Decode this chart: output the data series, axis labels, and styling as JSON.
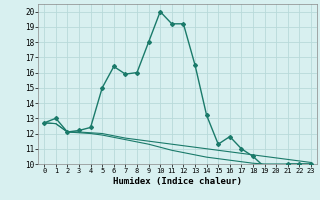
{
  "xlabel": "Humidex (Indice chaleur)",
  "ylabel": "",
  "bg_color": "#d8f0f0",
  "grid_color": "#b8dada",
  "line_color": "#1a7a6a",
  "xlim": [
    -0.5,
    23.5
  ],
  "ylim": [
    10,
    20.5
  ],
  "xticks": [
    0,
    1,
    2,
    3,
    4,
    5,
    6,
    7,
    8,
    9,
    10,
    11,
    12,
    13,
    14,
    15,
    16,
    17,
    18,
    19,
    20,
    21,
    22,
    23
  ],
  "yticks": [
    10,
    11,
    12,
    13,
    14,
    15,
    16,
    17,
    18,
    19,
    20
  ],
  "series1_x": [
    0,
    1,
    2,
    3,
    4,
    5,
    6,
    7,
    8,
    9,
    10,
    11,
    12,
    13,
    14,
    15,
    16,
    17,
    18,
    19,
    20,
    21,
    22,
    23
  ],
  "series1_y": [
    12.7,
    13.0,
    12.1,
    12.2,
    12.4,
    15.0,
    16.4,
    15.9,
    16.0,
    18.0,
    20.0,
    19.2,
    19.2,
    16.5,
    13.2,
    11.3,
    11.8,
    11.0,
    10.5,
    9.8,
    9.8,
    10.0,
    10.0,
    10.0
  ],
  "series2_x": [
    0,
    1,
    2,
    3,
    4,
    5,
    6,
    7,
    8,
    9,
    10,
    11,
    12,
    13,
    14,
    15,
    16,
    17,
    18,
    19,
    20,
    21,
    22,
    23
  ],
  "series2_y": [
    12.7,
    12.65,
    12.1,
    12.1,
    12.05,
    12.0,
    11.85,
    11.7,
    11.6,
    11.5,
    11.4,
    11.3,
    11.2,
    11.1,
    11.0,
    10.9,
    10.8,
    10.7,
    10.6,
    10.5,
    10.4,
    10.3,
    10.2,
    10.1
  ],
  "series3_x": [
    0,
    1,
    2,
    3,
    4,
    5,
    6,
    7,
    8,
    9,
    10,
    11,
    12,
    13,
    14,
    15,
    16,
    17,
    18,
    19,
    20,
    21,
    22,
    23
  ],
  "series3_y": [
    12.7,
    12.65,
    12.1,
    12.05,
    12.0,
    11.9,
    11.75,
    11.6,
    11.45,
    11.3,
    11.1,
    10.9,
    10.75,
    10.6,
    10.45,
    10.35,
    10.25,
    10.15,
    10.05,
    10.0,
    10.0,
    10.0,
    10.0,
    10.0
  ]
}
